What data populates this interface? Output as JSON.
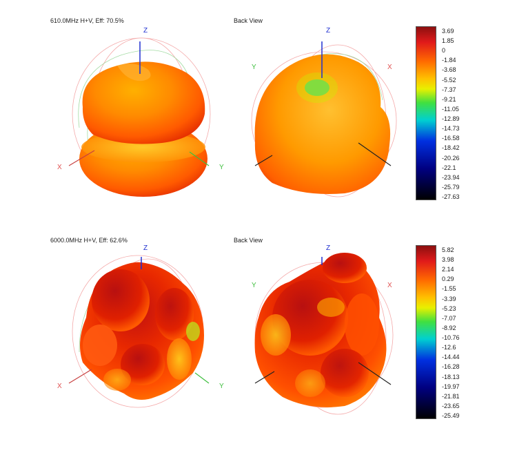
{
  "chart_data": [
    {
      "type": "heatmap",
      "title": "610.0MHz H+V, Eff: 70.5%",
      "views": [
        {
          "name": "front",
          "label": "",
          "axes": [
            "Z",
            "X",
            "Y"
          ]
        },
        {
          "name": "back",
          "label": "Back View",
          "axes": [
            "Z",
            "Y",
            "X"
          ]
        }
      ],
      "colorbar": {
        "ticks": [
          3.69,
          1.85,
          0,
          -1.84,
          -3.68,
          -5.52,
          -7.37,
          -9.21,
          -11.05,
          -12.89,
          -14.73,
          -16.58,
          -18.42,
          -20.26,
          -22.1,
          -23.94,
          -25.79,
          -27.63
        ],
        "range": [
          -27.63,
          3.69
        ]
      }
    },
    {
      "type": "heatmap",
      "title": "6000.0MHz H+V, Eff: 62.6%",
      "views": [
        {
          "name": "front",
          "label": "",
          "axes": [
            "Z",
            "X",
            "Y"
          ]
        },
        {
          "name": "back",
          "label": "Back View",
          "axes": [
            "Z",
            "Y",
            "X"
          ]
        }
      ],
      "colorbar": {
        "ticks": [
          5.82,
          3.98,
          2.14,
          0.29,
          -1.55,
          -3.39,
          -5.23,
          -7.07,
          -8.92,
          -10.76,
          -12.6,
          -14.44,
          -16.28,
          -18.13,
          -19.97,
          -21.81,
          -23.65,
          -25.49
        ],
        "range": [
          -25.49,
          5.82
        ]
      }
    }
  ],
  "colors": {
    "axis_z": "#1f2fd0",
    "axis_x": "#e05050",
    "axis_y": "#3fbf3f",
    "colormap": [
      "#8a0f0f",
      "#e01a1a",
      "#ff6a00",
      "#ffc000",
      "#e8f000",
      "#40e040",
      "#00d0d0",
      "#0030e0",
      "#000080",
      "#000000"
    ]
  }
}
